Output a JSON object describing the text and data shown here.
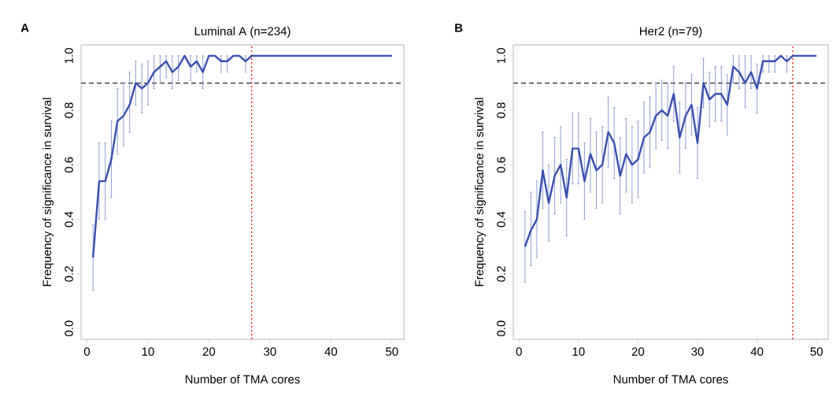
{
  "chart_data": [
    {
      "type": "line",
      "title": "Luminal A   (n=234)",
      "xlabel": "Number of TMA cores",
      "ylabel": "Frequency of significance in survival",
      "annotations": [
        "A"
      ],
      "x": [
        1,
        2,
        3,
        4,
        5,
        6,
        7,
        8,
        9,
        10,
        11,
        12,
        13,
        14,
        15,
        16,
        17,
        18,
        19,
        20,
        21,
        22,
        23,
        24,
        25,
        26,
        27,
        28,
        29,
        30,
        31,
        32,
        33,
        34,
        35,
        36,
        37,
        38,
        39,
        40,
        41,
        42,
        43,
        44,
        45,
        46,
        47,
        48,
        49,
        50
      ],
      "series": [
        {
          "color": "#3a4fb0",
          "values": [
            0.26,
            0.54,
            0.54,
            0.62,
            0.76,
            0.78,
            0.82,
            0.9,
            0.88,
            0.9,
            0.94,
            0.96,
            0.98,
            0.94,
            0.96,
            1.0,
            0.96,
            0.98,
            0.94,
            1.0,
            1.0,
            0.98,
            0.98,
            1.0,
            1.0,
            0.98,
            1.0,
            1.0,
            1.0,
            1.0,
            1.0,
            1.0,
            1.0,
            1.0,
            1.0,
            1.0,
            1.0,
            1.0,
            1.0,
            1.0,
            1.0,
            1.0,
            1.0,
            1.0,
            1.0,
            1.0,
            1.0,
            1.0,
            1.0,
            1.0
          ],
          "errors": [
            [
              0.14,
              0.38
            ],
            [
              0.4,
              0.68
            ],
            [
              0.4,
              0.68
            ],
            [
              0.48,
              0.76
            ],
            [
              0.64,
              0.88
            ],
            [
              0.67,
              0.9
            ],
            [
              0.72,
              0.94
            ],
            [
              0.82,
              0.98
            ],
            [
              0.79,
              0.97
            ],
            [
              0.82,
              0.98
            ],
            [
              0.88,
              1.0
            ],
            [
              0.9,
              1.0
            ],
            [
              0.92,
              1.0
            ],
            [
              0.88,
              1.0
            ],
            [
              0.91,
              1.0
            ],
            null,
            [
              0.91,
              1.0
            ],
            [
              0.94,
              1.0
            ],
            [
              0.88,
              1.0
            ],
            null,
            null,
            [
              0.94,
              1.0
            ],
            [
              0.94,
              1.0
            ],
            null,
            null,
            [
              0.94,
              1.0
            ],
            null,
            null,
            null,
            null,
            null,
            null,
            null,
            null,
            null,
            null,
            null,
            null,
            null,
            null,
            null,
            null,
            null,
            null,
            null,
            null,
            null,
            null,
            null,
            null
          ]
        }
      ],
      "xlim": [
        -0.96,
        51.96
      ],
      "ylim": [
        -0.04,
        1.04
      ],
      "xticks": [
        0,
        10,
        20,
        30,
        40,
        50
      ],
      "yticks": [
        {
          "value": 0,
          "label": "0.0"
        },
        {
          "value": 0.2,
          "label": "0.2"
        },
        {
          "value": 0.4,
          "label": "0.4"
        },
        {
          "value": 0.6,
          "label": "0.6"
        },
        {
          "value": 0.8,
          "label": "0.8"
        },
        {
          "value": 1,
          "label": "1.0"
        }
      ],
      "ref_lines": [
        {
          "axis": "y",
          "value": 0.9,
          "color": "#000000",
          "line_style": "dashed"
        },
        {
          "axis": "x",
          "value": 27,
          "color": "#e8291c",
          "line_style": "dotted"
        }
      ],
      "marker": "none",
      "line_style": "solid"
    },
    {
      "type": "line",
      "title": "Her2  (n=79)",
      "xlabel": "Number of TMA cores",
      "ylabel": "Frequency of significance in survival",
      "annotations": [
        "B"
      ],
      "x": [
        1,
        2,
        3,
        4,
        5,
        6,
        7,
        8,
        9,
        10,
        11,
        12,
        13,
        14,
        15,
        16,
        17,
        18,
        19,
        20,
        21,
        22,
        23,
        24,
        25,
        26,
        27,
        28,
        29,
        30,
        31,
        32,
        33,
        34,
        35,
        36,
        37,
        38,
        39,
        40,
        41,
        42,
        43,
        44,
        45,
        46,
        47,
        48,
        49,
        50
      ],
      "series": [
        {
          "color": "#3a4fb0",
          "values": [
            0.3,
            0.36,
            0.4,
            0.58,
            0.46,
            0.56,
            0.6,
            0.48,
            0.66,
            0.66,
            0.54,
            0.64,
            0.58,
            0.6,
            0.72,
            0.68,
            0.56,
            0.64,
            0.6,
            0.62,
            0.7,
            0.72,
            0.78,
            0.8,
            0.78,
            0.86,
            0.7,
            0.78,
            0.82,
            0.68,
            0.9,
            0.84,
            0.86,
            0.86,
            0.82,
            0.96,
            0.94,
            0.9,
            0.94,
            0.88,
            0.98,
            0.98,
            0.98,
            1.0,
            0.98,
            1.0,
            1.0,
            1.0,
            1.0,
            1.0
          ],
          "errors": [
            [
              0.17,
              0.43
            ],
            [
              0.23,
              0.5
            ],
            [
              0.26,
              0.54
            ],
            [
              0.44,
              0.72
            ],
            [
              0.32,
              0.6
            ],
            [
              0.42,
              0.7
            ],
            [
              0.46,
              0.74
            ],
            [
              0.34,
              0.62
            ],
            [
              0.53,
              0.79
            ],
            [
              0.53,
              0.79
            ],
            [
              0.4,
              0.68
            ],
            [
              0.5,
              0.77
            ],
            [
              0.44,
              0.72
            ],
            [
              0.46,
              0.74
            ],
            [
              0.59,
              0.85
            ],
            [
              0.55,
              0.81
            ],
            [
              0.42,
              0.7
            ],
            [
              0.5,
              0.77
            ],
            [
              0.46,
              0.74
            ],
            [
              0.48,
              0.76
            ],
            [
              0.57,
              0.83
            ],
            [
              0.59,
              0.85
            ],
            [
              0.66,
              0.9
            ],
            [
              0.69,
              0.91
            ],
            [
              0.66,
              0.9
            ],
            [
              0.76,
              0.96
            ],
            [
              0.57,
              0.83
            ],
            [
              0.66,
              0.9
            ],
            [
              0.71,
              0.93
            ],
            [
              0.55,
              0.81
            ],
            [
              0.81,
              0.99
            ],
            [
              0.74,
              0.94
            ],
            [
              0.76,
              0.96
            ],
            [
              0.76,
              0.96
            ],
            [
              0.71,
              0.93
            ],
            [
              0.9,
              1.0
            ],
            [
              0.88,
              1.0
            ],
            [
              0.81,
              1.0
            ],
            [
              0.88,
              1.0
            ],
            [
              0.79,
              0.97
            ],
            [
              0.94,
              1.0
            ],
            [
              0.94,
              1.0
            ],
            [
              0.94,
              1.0
            ],
            null,
            [
              0.94,
              1.0
            ],
            null,
            null,
            null,
            null,
            null
          ]
        }
      ],
      "xlim": [
        -0.96,
        51.96
      ],
      "ylim": [
        -0.04,
        1.04
      ],
      "xticks": [
        0,
        10,
        20,
        30,
        40,
        50
      ],
      "yticks": [
        {
          "value": 0,
          "label": "0.0"
        },
        {
          "value": 0.2,
          "label": "0.2"
        },
        {
          "value": 0.4,
          "label": "0.4"
        },
        {
          "value": 0.6,
          "label": "0.6"
        },
        {
          "value": 0.8,
          "label": "0.8"
        },
        {
          "value": 1,
          "label": "1.0"
        }
      ],
      "ref_lines": [
        {
          "axis": "y",
          "value": 0.9,
          "color": "#000000",
          "line_style": "dashed"
        },
        {
          "axis": "x",
          "value": 46,
          "color": "#e8291c",
          "line_style": "dotted"
        }
      ],
      "marker": "none",
      "line_style": "solid"
    }
  ]
}
